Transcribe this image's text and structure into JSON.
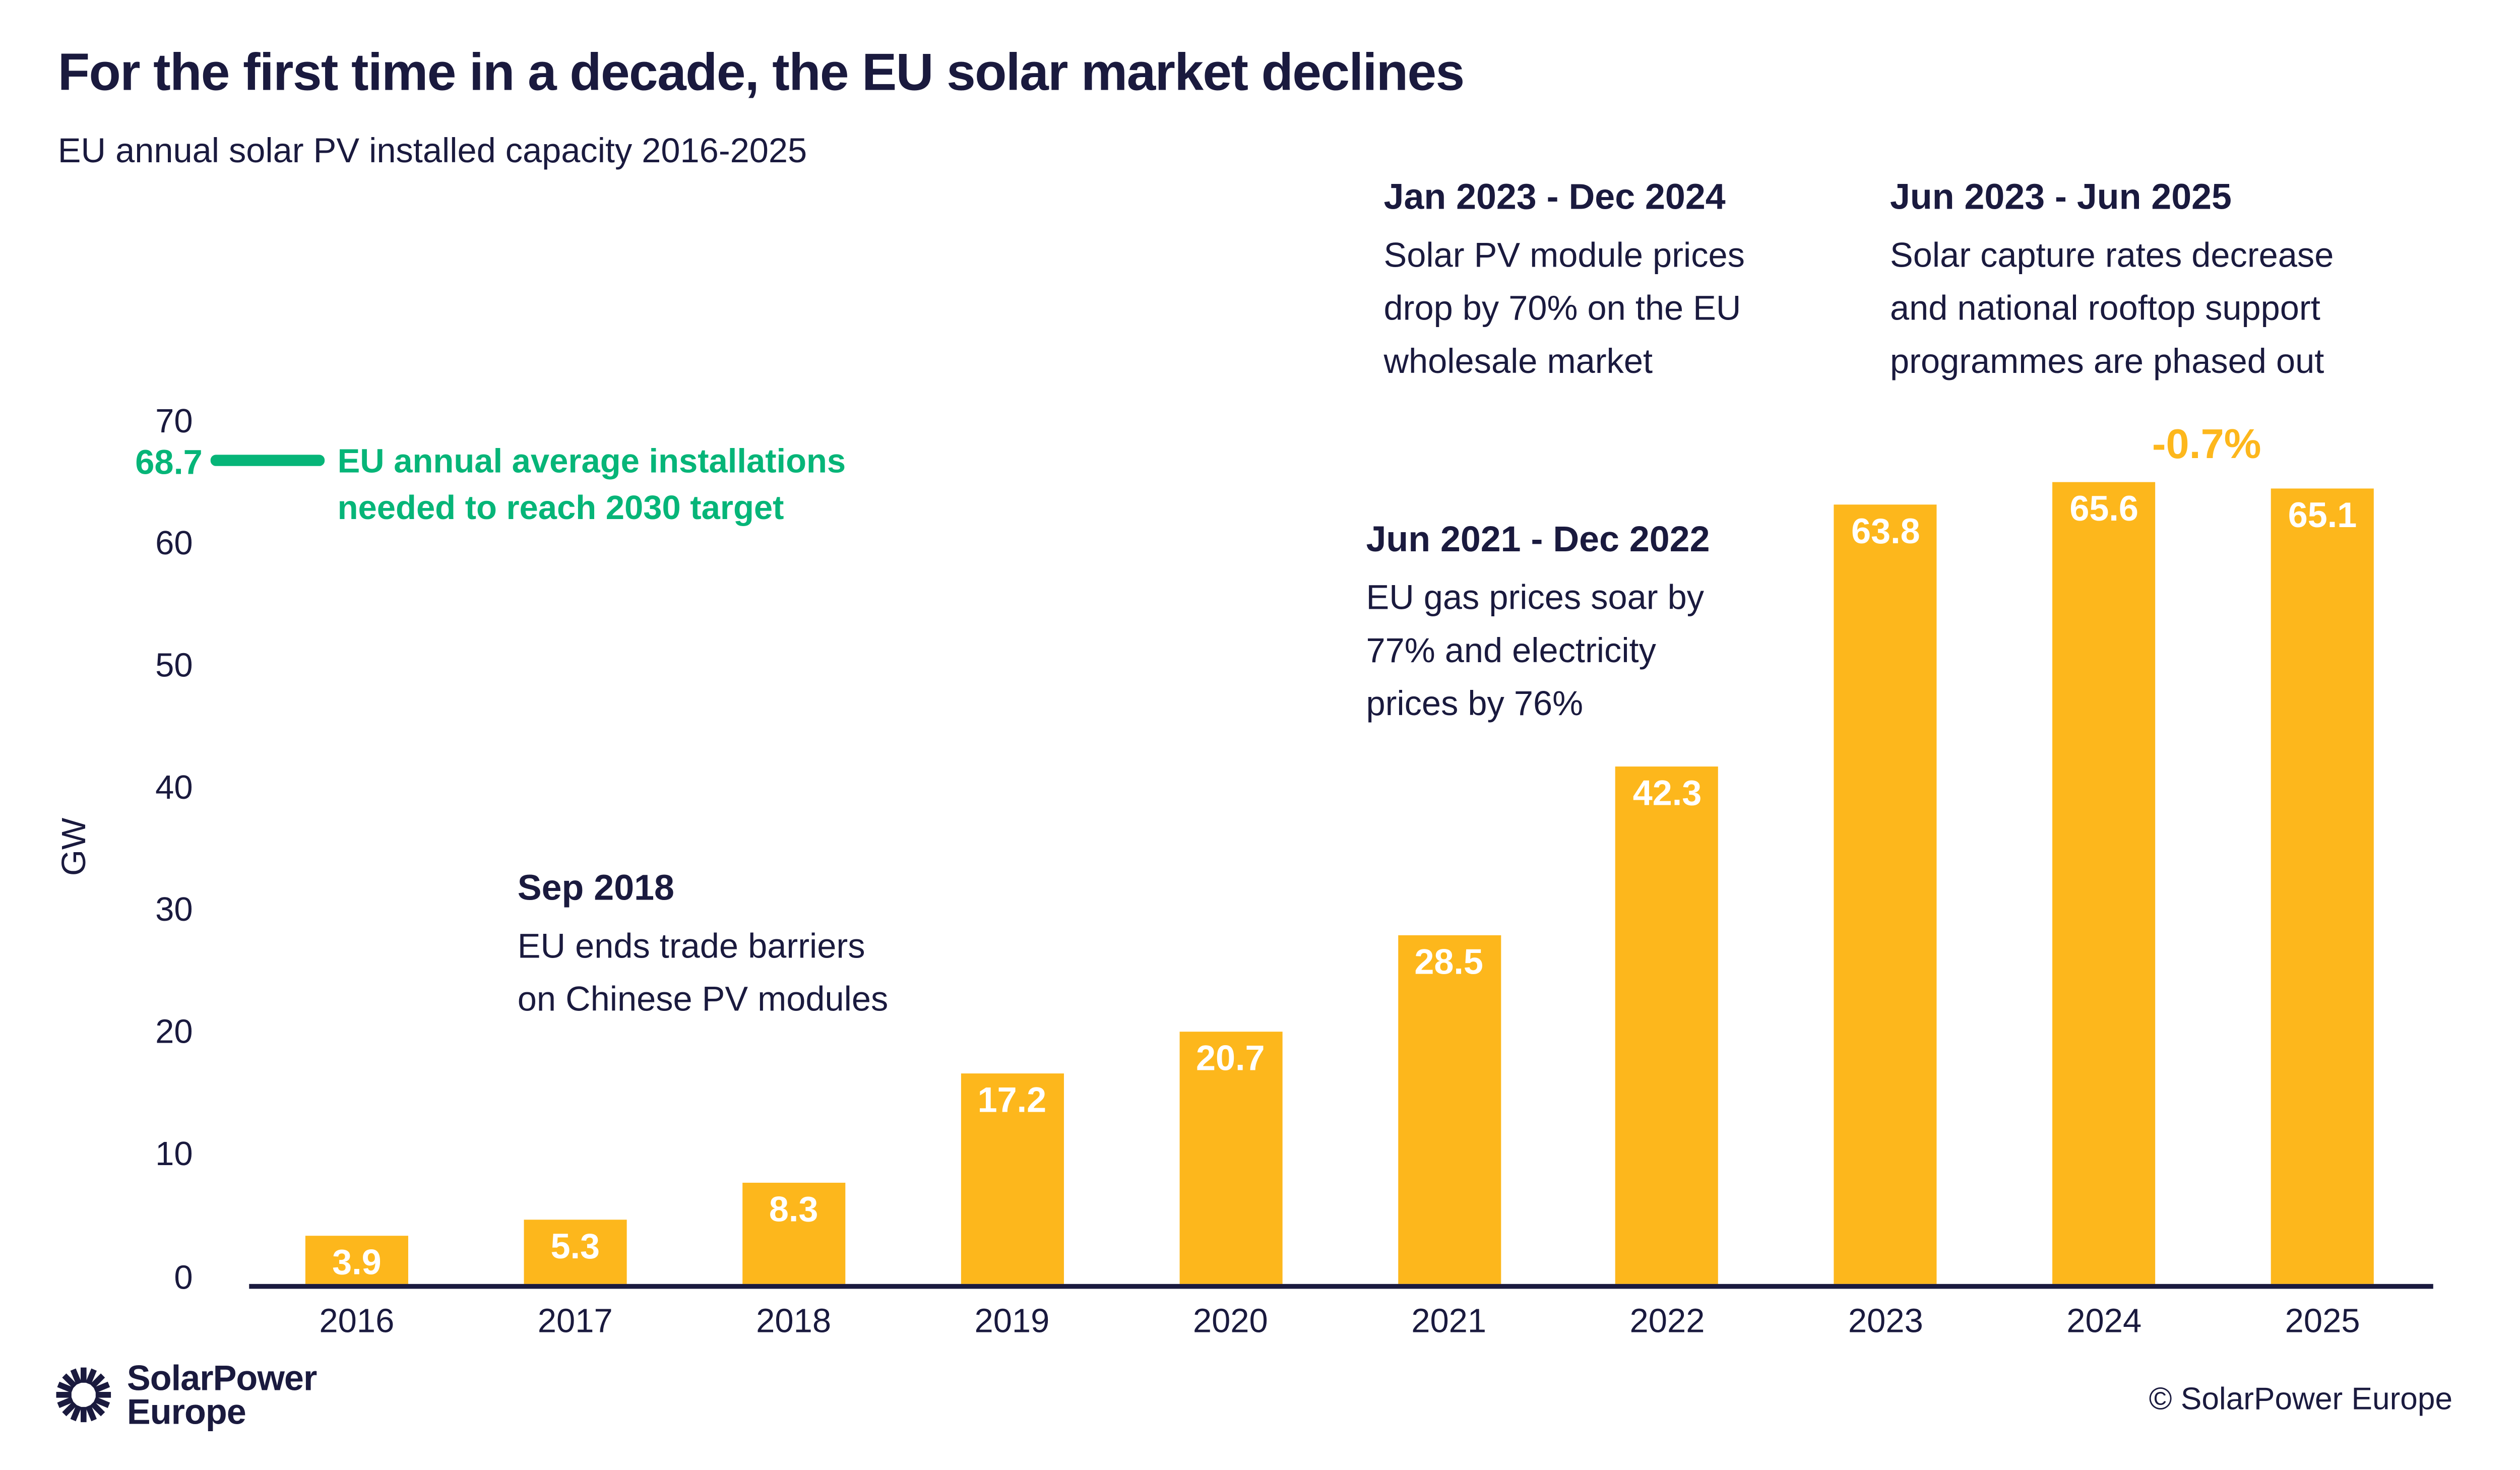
{
  "colors": {
    "navy": "#1A1A3E",
    "orange": "#FDB71C",
    "green": "#06B578",
    "white": "#FFFFFF"
  },
  "title": "For the first time in a decade, the EU solar market declines",
  "subtitle": "EU annual solar PV installed capacity 2016-2025",
  "annotations": [
    {
      "title": "Sep 2018",
      "lines": [
        "EU ends trade barriers",
        "on Chinese PV modules"
      ]
    },
    {
      "title": "Jun 2021 - Dec 2022",
      "lines": [
        "EU gas prices soar by",
        "77% and electricity",
        "prices by 76%"
      ]
    },
    {
      "title": "Jan 2023 - Dec 2024",
      "lines": [
        "Solar PV module prices",
        "drop by 70% on the EU",
        "wholesale market"
      ]
    },
    {
      "title": "Jun 2023 - Jun 2025",
      "lines": [
        "Solar capture rates decrease",
        "and national rooftop support",
        "programmes are phased out"
      ]
    }
  ],
  "target_marker": {
    "value_label": "68.7",
    "line1": "EU annual average installations",
    "line2": "needed to reach 2030 target"
  },
  "delta_label": "-0.7%",
  "chart_data": {
    "type": "bar",
    "title": "EU annual solar PV installed capacity 2016-2025",
    "categories": [
      "2016",
      "2017",
      "2018",
      "2019",
      "2020",
      "2021",
      "2022",
      "2023",
      "2024",
      "2025"
    ],
    "values": [
      3.9,
      5.3,
      8.3,
      17.2,
      20.7,
      28.5,
      42.3,
      63.8,
      65.6,
      65.1
    ],
    "xlabel": "",
    "ylabel": "GW",
    "ylim": [
      0,
      75
    ],
    "yticks": [
      0,
      10,
      20,
      30,
      40,
      50,
      60,
      70
    ],
    "grid": false,
    "legend": false,
    "bar_color": "#FDB71C",
    "value_labels": "inside-top, white",
    "target_line": {
      "value": 68.7,
      "label": "EU annual average installations needed to reach 2030 target",
      "color": "#06B578"
    },
    "change_annotation": {
      "between": [
        "2024",
        "2025"
      ],
      "label": "-0.7%",
      "color": "#FDB71C"
    }
  },
  "footer": {
    "logo_line1": "SolarPower",
    "logo_line2": "Europe",
    "copyright": "© SolarPower Europe"
  }
}
